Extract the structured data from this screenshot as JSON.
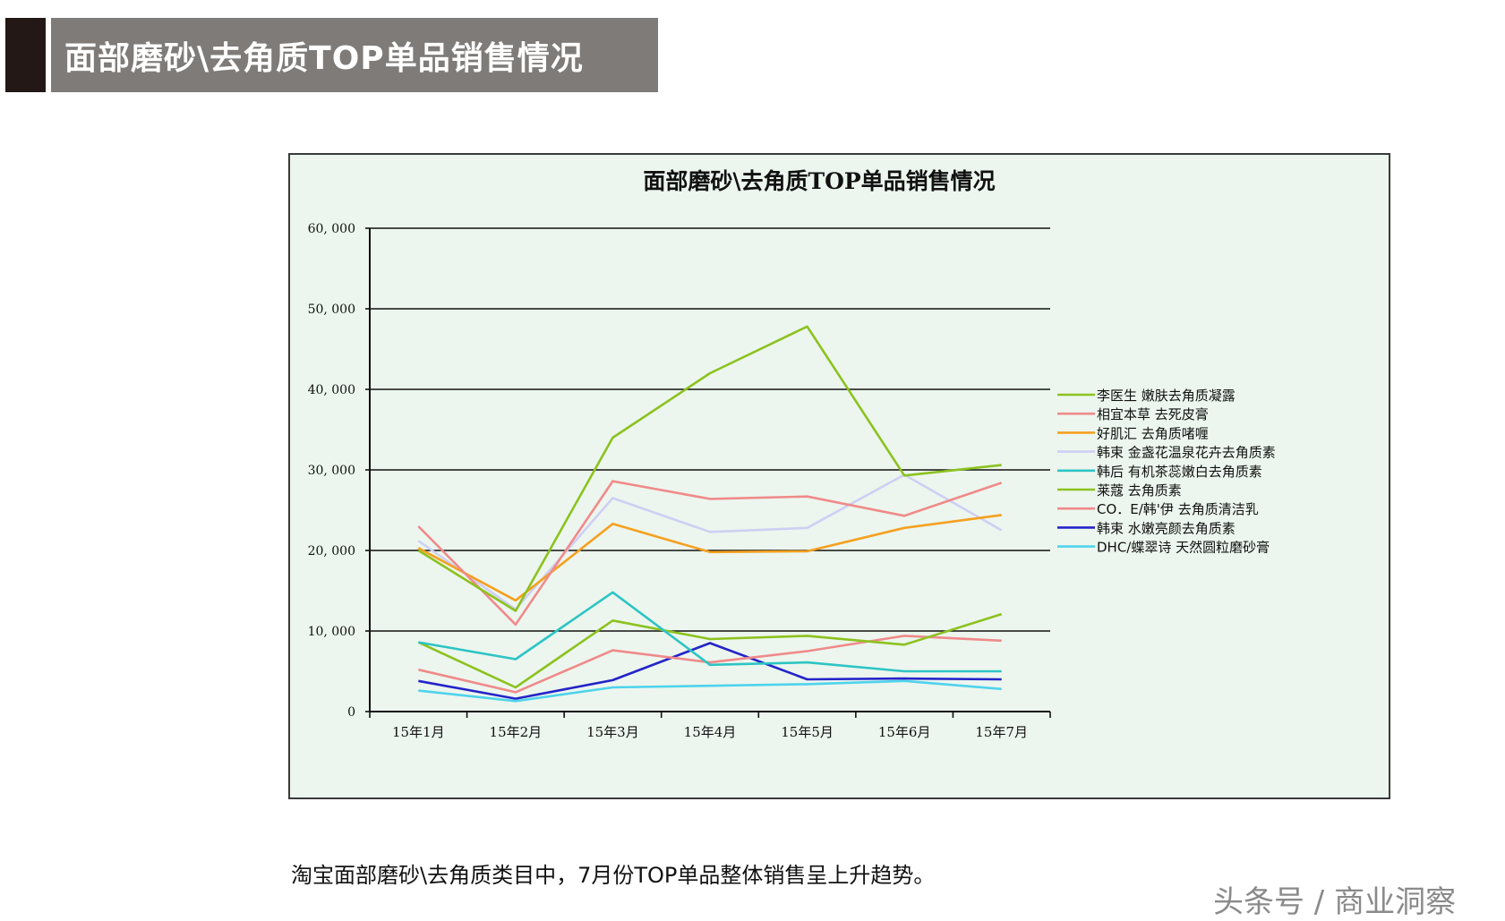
{
  "header": {
    "title": "面部磨砂\\去角质TOP单品销售情况"
  },
  "caption": "淘宝面部磨砂\\去角质类目中，7月份TOP单品整体销售呈上升趋势。",
  "watermark": "头条号 / 商业洞察",
  "colors": {
    "header_bg": "#7f7b78",
    "header_block": "#231815",
    "chart_bg": "#ecf6ee"
  },
  "chart_data": {
    "type": "line",
    "title": "面部磨砂\\去角质TOP单品销售情况",
    "xlabel": "",
    "ylabel": "",
    "categories": [
      "15年1月",
      "15年2月",
      "15年3月",
      "15年4月",
      "15年5月",
      "15年6月",
      "15年7月"
    ],
    "ylim": [
      0,
      60000
    ],
    "yticks": [
      0,
      10000,
      20000,
      30000,
      40000,
      50000,
      60000
    ],
    "ytick_labels": [
      "0",
      "10, 000",
      "20, 000",
      "30, 000",
      "40, 000",
      "50, 000",
      "60, 000"
    ],
    "grid": true,
    "legend_position": "right",
    "series": [
      {
        "name": "李医生 嫩肤去角质凝露",
        "color": "#8cc21f",
        "values": [
          20000,
          12500,
          34000,
          42000,
          47800,
          29300,
          30600
        ]
      },
      {
        "name": "相宜本草 去死皮膏",
        "color": "#f08a8a",
        "values": [
          23000,
          10800,
          28600,
          26400,
          26700,
          24300,
          28400
        ]
      },
      {
        "name": "好肌汇 去角质啫喱",
        "color": "#f5a020",
        "values": [
          20300,
          13800,
          23300,
          19800,
          19900,
          22800,
          24400
        ]
      },
      {
        "name": "韩束 金盏花温泉花卉去角质素",
        "color": "#cfcff4",
        "values": [
          21200,
          12700,
          26500,
          22300,
          22800,
          29400,
          22500
        ]
      },
      {
        "name": "韩后 有机茶蕊嫩白去角质素",
        "color": "#2ec4c4",
        "values": [
          8600,
          6500,
          14800,
          5800,
          6100,
          5000,
          5000
        ]
      },
      {
        "name": "莱蔻 去角质素",
        "color": "#8cc21f",
        "values": [
          8600,
          3000,
          11300,
          9000,
          9400,
          8300,
          12100
        ]
      },
      {
        "name": "CO．E/韩'伊 去角质清洁乳",
        "color": "#f08a8a",
        "values": [
          5200,
          2400,
          7600,
          6100,
          7500,
          9400,
          8800
        ]
      },
      {
        "name": "韩束 水嫩亮颜去角质素",
        "color": "#2424c8",
        "values": [
          3800,
          1600,
          3900,
          8500,
          4000,
          4100,
          4000
        ]
      },
      {
        "name": "DHC/蝶翠诗 天然圆粒磨砂膏",
        "color": "#4fd3ec",
        "values": [
          2600,
          1300,
          3000,
          3200,
          3400,
          3800,
          2800
        ]
      }
    ]
  }
}
